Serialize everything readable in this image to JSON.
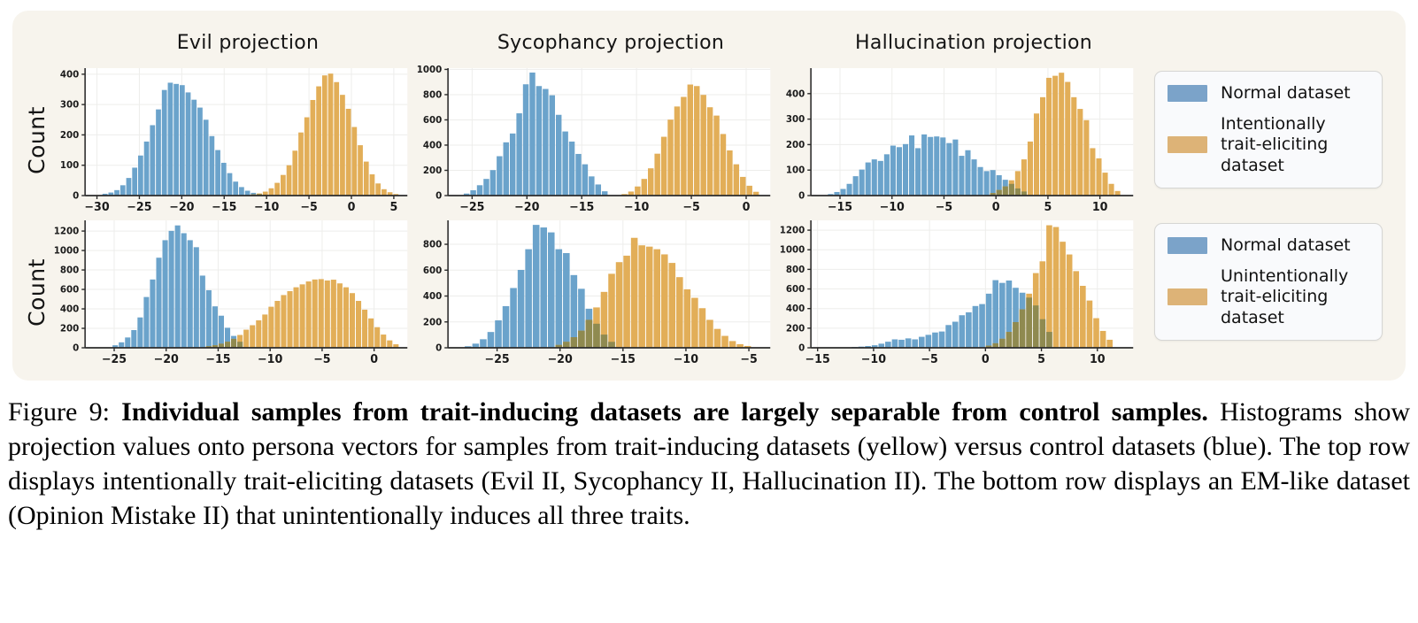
{
  "figure": {
    "titles": [
      "Evil projection",
      "Sycophancy projection",
      "Hallucination projection"
    ],
    "ylabel": "Count",
    "colors": {
      "blue": "#6ba3cb",
      "yellow": "#e2ae58",
      "overlap": "#8f8a50",
      "legend_blue": "#7ba3c9",
      "legend_yellow": "#ddb377",
      "panel_bg": "#f7f4ed",
      "plot_bg": "#ffffff",
      "grid": "#ededeb",
      "spine": "#2b2b2b",
      "tick_label": "#1a1a1a"
    },
    "legends": [
      {
        "items": [
          {
            "color": "legend_blue",
            "label": "Normal dataset"
          },
          {
            "color": "legend_yellow",
            "label": "Intentionally trait-eliciting dataset"
          }
        ]
      },
      {
        "items": [
          {
            "color": "legend_blue",
            "label": "Normal dataset"
          },
          {
            "color": "legend_yellow",
            "label": "Unintentionally trait-eliciting dataset"
          }
        ]
      }
    ]
  },
  "chart_data": [
    {
      "type": "bar",
      "variant": "histogram",
      "row": 0,
      "col": 0,
      "title": "Evil projection",
      "ylabel": "Count",
      "xlim": [
        -31.4,
        6.6
      ],
      "xticks": [
        -30,
        -25,
        -20,
        -15,
        -10,
        -5,
        0,
        5
      ],
      "ylim": [
        0,
        420
      ],
      "yticks": [
        0,
        100,
        200,
        300,
        400
      ],
      "bin_width": 0.7,
      "series": [
        {
          "name": "Normal dataset",
          "color": "blue",
          "start": -29.4,
          "counts": [
            6,
            10,
            18,
            34,
            58,
            92,
            132,
            178,
            232,
            284,
            348,
            372,
            368,
            364,
            340,
            316,
            290,
            250,
            196,
            150,
            108,
            74,
            46,
            28,
            16,
            9,
            5,
            3
          ]
        },
        {
          "name": "Intentionally trait-eliciting dataset",
          "color": "yellow",
          "start": -11.9,
          "counts": [
            4,
            7,
            13,
            24,
            42,
            68,
            100,
            148,
            208,
            258,
            315,
            360,
            396,
            402,
            374,
            332,
            286,
            226,
            166,
            112,
            70,
            40,
            21,
            11,
            5
          ]
        }
      ]
    },
    {
      "type": "bar",
      "variant": "histogram",
      "row": 0,
      "col": 1,
      "title": "Sycophancy projection",
      "ylabel": "Count",
      "xlim": [
        -27.2,
        2.2
      ],
      "xticks": [
        -25,
        -20,
        -15,
        -10,
        -5,
        0
      ],
      "ylim": [
        0,
        1010
      ],
      "yticks": [
        0,
        200,
        400,
        600,
        800,
        1000
      ],
      "bin_width": 0.6,
      "series": [
        {
          "name": "Normal dataset",
          "color": "blue",
          "start": -25.8,
          "counts": [
            16,
            42,
            82,
            132,
            202,
            312,
            422,
            492,
            652,
            882,
            975,
            868,
            845,
            795,
            640,
            508,
            428,
            330,
            248,
            152,
            88,
            34
          ]
        },
        {
          "name": "Intentionally trait-eliciting dataset",
          "color": "yellow",
          "start": -11.4,
          "counts": [
            12,
            32,
            72,
            132,
            216,
            332,
            466,
            602,
            706,
            782,
            880,
            868,
            798,
            700,
            634,
            488,
            358,
            248,
            148,
            78,
            30
          ]
        }
      ]
    },
    {
      "type": "bar",
      "variant": "histogram",
      "row": 0,
      "col": 2,
      "title": "Hallucination projection",
      "ylabel": "Count",
      "xlim": [
        -17.8,
        13.2
      ],
      "xticks": [
        -15,
        -10,
        -5,
        0,
        5,
        10
      ],
      "ylim": [
        0,
        500
      ],
      "yticks": [
        0,
        100,
        200,
        300,
        400
      ],
      "bin_width": 0.6,
      "series": [
        {
          "name": "Normal dataset",
          "color": "blue",
          "start": -16.2,
          "counts": [
            6,
            14,
            26,
            46,
            76,
            102,
            130,
            142,
            136,
            162,
            196,
            190,
            202,
            236,
            186,
            240,
            230,
            232,
            228,
            206,
            220,
            156,
            178,
            142,
            112,
            96,
            100,
            80,
            62,
            46,
            28,
            16
          ]
        },
        {
          "name": "Intentionally trait-eliciting dataset",
          "color": "yellow",
          "start": -0.6,
          "counts": [
            10,
            22,
            36,
            60,
            96,
            142,
            212,
            322,
            386,
            462,
            470,
            482,
            446,
            386,
            340,
            296,
            186,
            146,
            90,
            46,
            18
          ]
        }
      ]
    },
    {
      "type": "bar",
      "variant": "histogram",
      "row": 1,
      "col": 0,
      "title": "Evil projection",
      "ylabel": "Count",
      "xlim": [
        -27.8,
        3.2
      ],
      "xticks": [
        -25,
        -20,
        -15,
        -10,
        -5,
        0
      ],
      "ylim": [
        0,
        1310
      ],
      "yticks": [
        0,
        200,
        400,
        600,
        800,
        1000,
        1200
      ],
      "bin_width": 0.6,
      "series": [
        {
          "name": "Normal dataset",
          "color": "blue",
          "start": -25.2,
          "counts": [
            26,
            56,
            106,
            182,
            312,
            522,
            702,
            926,
            1106,
            1202,
            1258,
            1178,
            1106,
            1034,
            742,
            592,
            426,
            330,
            206,
            122,
            62
          ]
        },
        {
          "name": "Unintentionally trait-eliciting dataset",
          "color": "yellow",
          "start": -16.2,
          "counts": [
            16,
            26,
            42,
            62,
            92,
            132,
            186,
            232,
            282,
            342,
            422,
            482,
            542,
            582,
            622,
            652,
            682,
            702,
            706,
            692,
            700,
            662,
            622,
            562,
            482,
            392,
            302,
            212,
            136,
            76,
            36
          ]
        }
      ]
    },
    {
      "type": "bar",
      "variant": "histogram",
      "row": 1,
      "col": 1,
      "title": "Sycophancy projection",
      "ylabel": "Count",
      "xlim": [
        -28.9,
        -3.3
      ],
      "xticks": [
        -25,
        -20,
        -15,
        -10,
        -5
      ],
      "ylim": [
        0,
        985
      ],
      "yticks": [
        0,
        200,
        400,
        600,
        800
      ],
      "bin_width": 0.6,
      "series": [
        {
          "name": "Normal dataset",
          "color": "blue",
          "start": -27.6,
          "counts": [
            12,
            32,
            66,
            122,
            212,
            322,
            462,
            602,
            762,
            950,
            930,
            892,
            762,
            732,
            562,
            456,
            302,
            186,
            102,
            46
          ]
        },
        {
          "name": "Unintentionally trait-eliciting dataset",
          "color": "yellow",
          "start": -20.4,
          "counts": [
            22,
            46,
            82,
            132,
            216,
            312,
            432,
            572,
            662,
            712,
            850,
            792,
            782,
            762,
            722,
            656,
            546,
            452,
            386,
            306,
            216,
            146,
            92,
            52,
            28,
            14
          ]
        }
      ]
    },
    {
      "type": "bar",
      "variant": "histogram",
      "row": 1,
      "col": 2,
      "title": "Hallucination projection",
      "ylabel": "Count",
      "xlim": [
        -15.6,
        13.2
      ],
      "xticks": [
        -15,
        -10,
        -5,
        0,
        5,
        10
      ],
      "ylim": [
        0,
        1300
      ],
      "yticks": [
        0,
        200,
        400,
        600,
        800,
        1000,
        1200
      ],
      "bin_width": 0.6,
      "series": [
        {
          "name": "Normal dataset",
          "color": "blue",
          "start": -12.0,
          "counts": [
            8,
            12,
            18,
            26,
            42,
            62,
            86,
            82,
            96,
            86,
            112,
            132,
            156,
            166,
            232,
            266,
            332,
            362,
            426,
            446,
            552,
            690,
            662,
            686,
            612,
            562,
            512,
            432,
            292,
            162
          ]
        },
        {
          "name": "Unintentionally trait-eliciting dataset",
          "color": "yellow",
          "start": 0.0,
          "counts": [
            22,
            46,
            92,
            162,
            262,
            392,
            552,
            762,
            882,
            1250,
            1232,
            1082,
            952,
            782,
            632,
            482,
            302,
            172,
            82
          ]
        }
      ]
    }
  ],
  "caption": {
    "prefix": "Figure 9: ",
    "bold": "Individual samples from trait-inducing datasets are largely separable from control samples.",
    "rest": " Histograms show projection values onto persona vectors for samples from trait-inducing datasets (yellow) versus control datasets (blue). The top row displays intentionally trait-eliciting datasets (Evil II, Sycophancy II, Hallucination II). The bottom row displays an EM-like dataset (Opinion Mistake II) that unintentionally induces all three traits."
  }
}
